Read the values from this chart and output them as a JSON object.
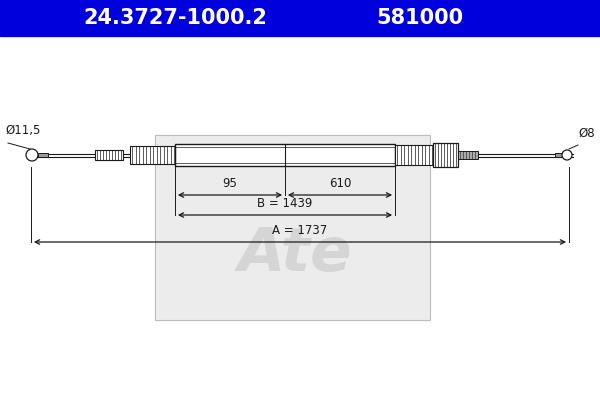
{
  "header_text1": "24.3727-1000.2",
  "header_text2": "581000",
  "header_bg": "#0000dd",
  "header_text_color": "#ffffff",
  "bg_color": "#ffffff",
  "line_color": "#1a1a1a",
  "dim_color": "#1a1a1a",
  "left_label": "Ø11,5",
  "right_label": "Ø8",
  "dim1_label": "95",
  "dim2_label": "610",
  "dim3_label": "B = 1439",
  "dim4_label": "A = 1737",
  "figsize": [
    6.0,
    4.0
  ],
  "dpi": 100
}
